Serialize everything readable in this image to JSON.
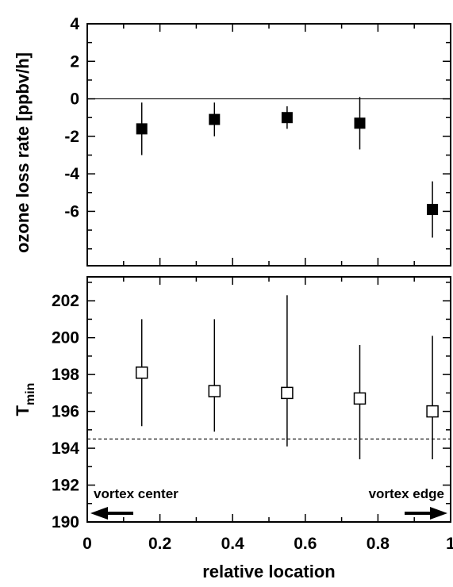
{
  "chart_data": [
    {
      "type": "scatter",
      "panel": "top",
      "ylabel": "ozone loss rate [ppbv/h]",
      "ylim": [
        -8.9,
        4
      ],
      "yticks": [
        4,
        2,
        0,
        -2,
        -4,
        -6
      ],
      "reference_line": {
        "y": 0,
        "style": "solid"
      },
      "marker": "filled-square",
      "points": [
        {
          "x": 0.15,
          "y": -1.6,
          "err_low": -3.0,
          "err_high": -0.2
        },
        {
          "x": 0.35,
          "y": -1.1,
          "err_low": -2.0,
          "err_high": -0.2
        },
        {
          "x": 0.55,
          "y": -1.0,
          "err_low": -1.6,
          "err_high": -0.4
        },
        {
          "x": 0.75,
          "y": -1.3,
          "err_low": -2.7,
          "err_high": 0.1
        },
        {
          "x": 0.95,
          "y": -5.9,
          "err_low": -7.4,
          "err_high": -4.4
        }
      ]
    },
    {
      "type": "scatter",
      "panel": "bottom",
      "ylabel_main": "T",
      "ylabel_sub": "min",
      "xlabel": "relative location",
      "xlim": [
        0,
        1
      ],
      "xticks": [
        "0",
        "0.2",
        "0.4",
        "0.6",
        "0.8",
        "1"
      ],
      "ylim": [
        190,
        203.3
      ],
      "yticks": [
        202,
        200,
        198,
        196,
        194,
        192,
        190
      ],
      "reference_line": {
        "y": 194.5,
        "style": "dashed"
      },
      "marker": "open-square",
      "points": [
        {
          "x": 0.15,
          "y": 198.1,
          "err_low": 195.2,
          "err_high": 201.0
        },
        {
          "x": 0.35,
          "y": 197.1,
          "err_low": 194.9,
          "err_high": 201.0
        },
        {
          "x": 0.55,
          "y": 197.0,
          "err_low": 194.1,
          "err_high": 202.3
        },
        {
          "x": 0.75,
          "y": 196.7,
          "err_low": 193.4,
          "err_high": 199.6
        },
        {
          "x": 0.95,
          "y": 196.0,
          "err_low": 193.4,
          "err_high": 200.1
        }
      ],
      "annotations": [
        {
          "text": "vortex center",
          "arrow": "left"
        },
        {
          "text": "vortex edge",
          "arrow": "right"
        }
      ]
    }
  ]
}
